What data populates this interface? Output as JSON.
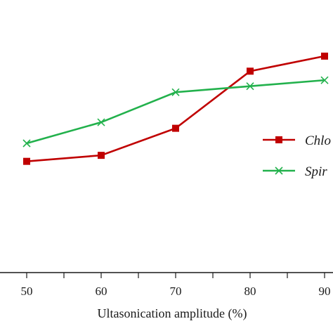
{
  "chart_data": {
    "type": "line",
    "x": [
      50,
      60,
      70,
      80,
      90
    ],
    "xlabel": "Ultasonication amplitude (%)",
    "x_tick_labels": [
      "50",
      "60",
      "70",
      "80",
      "90"
    ],
    "ylabel": "",
    "series": [
      {
        "name": "Chlo",
        "color": "#c00000",
        "marker": "square",
        "values": [
          1.85,
          1.95,
          2.4,
          3.35,
          3.6
        ]
      },
      {
        "name": "Spir",
        "color": "#22b14c",
        "marker": "x",
        "values": [
          2.15,
          2.5,
          3.0,
          3.1,
          3.2
        ]
      }
    ],
    "xlim": [
      40,
      90
    ],
    "ylim": [
      0,
      4.3
    ],
    "grid": false,
    "legend": "right"
  }
}
